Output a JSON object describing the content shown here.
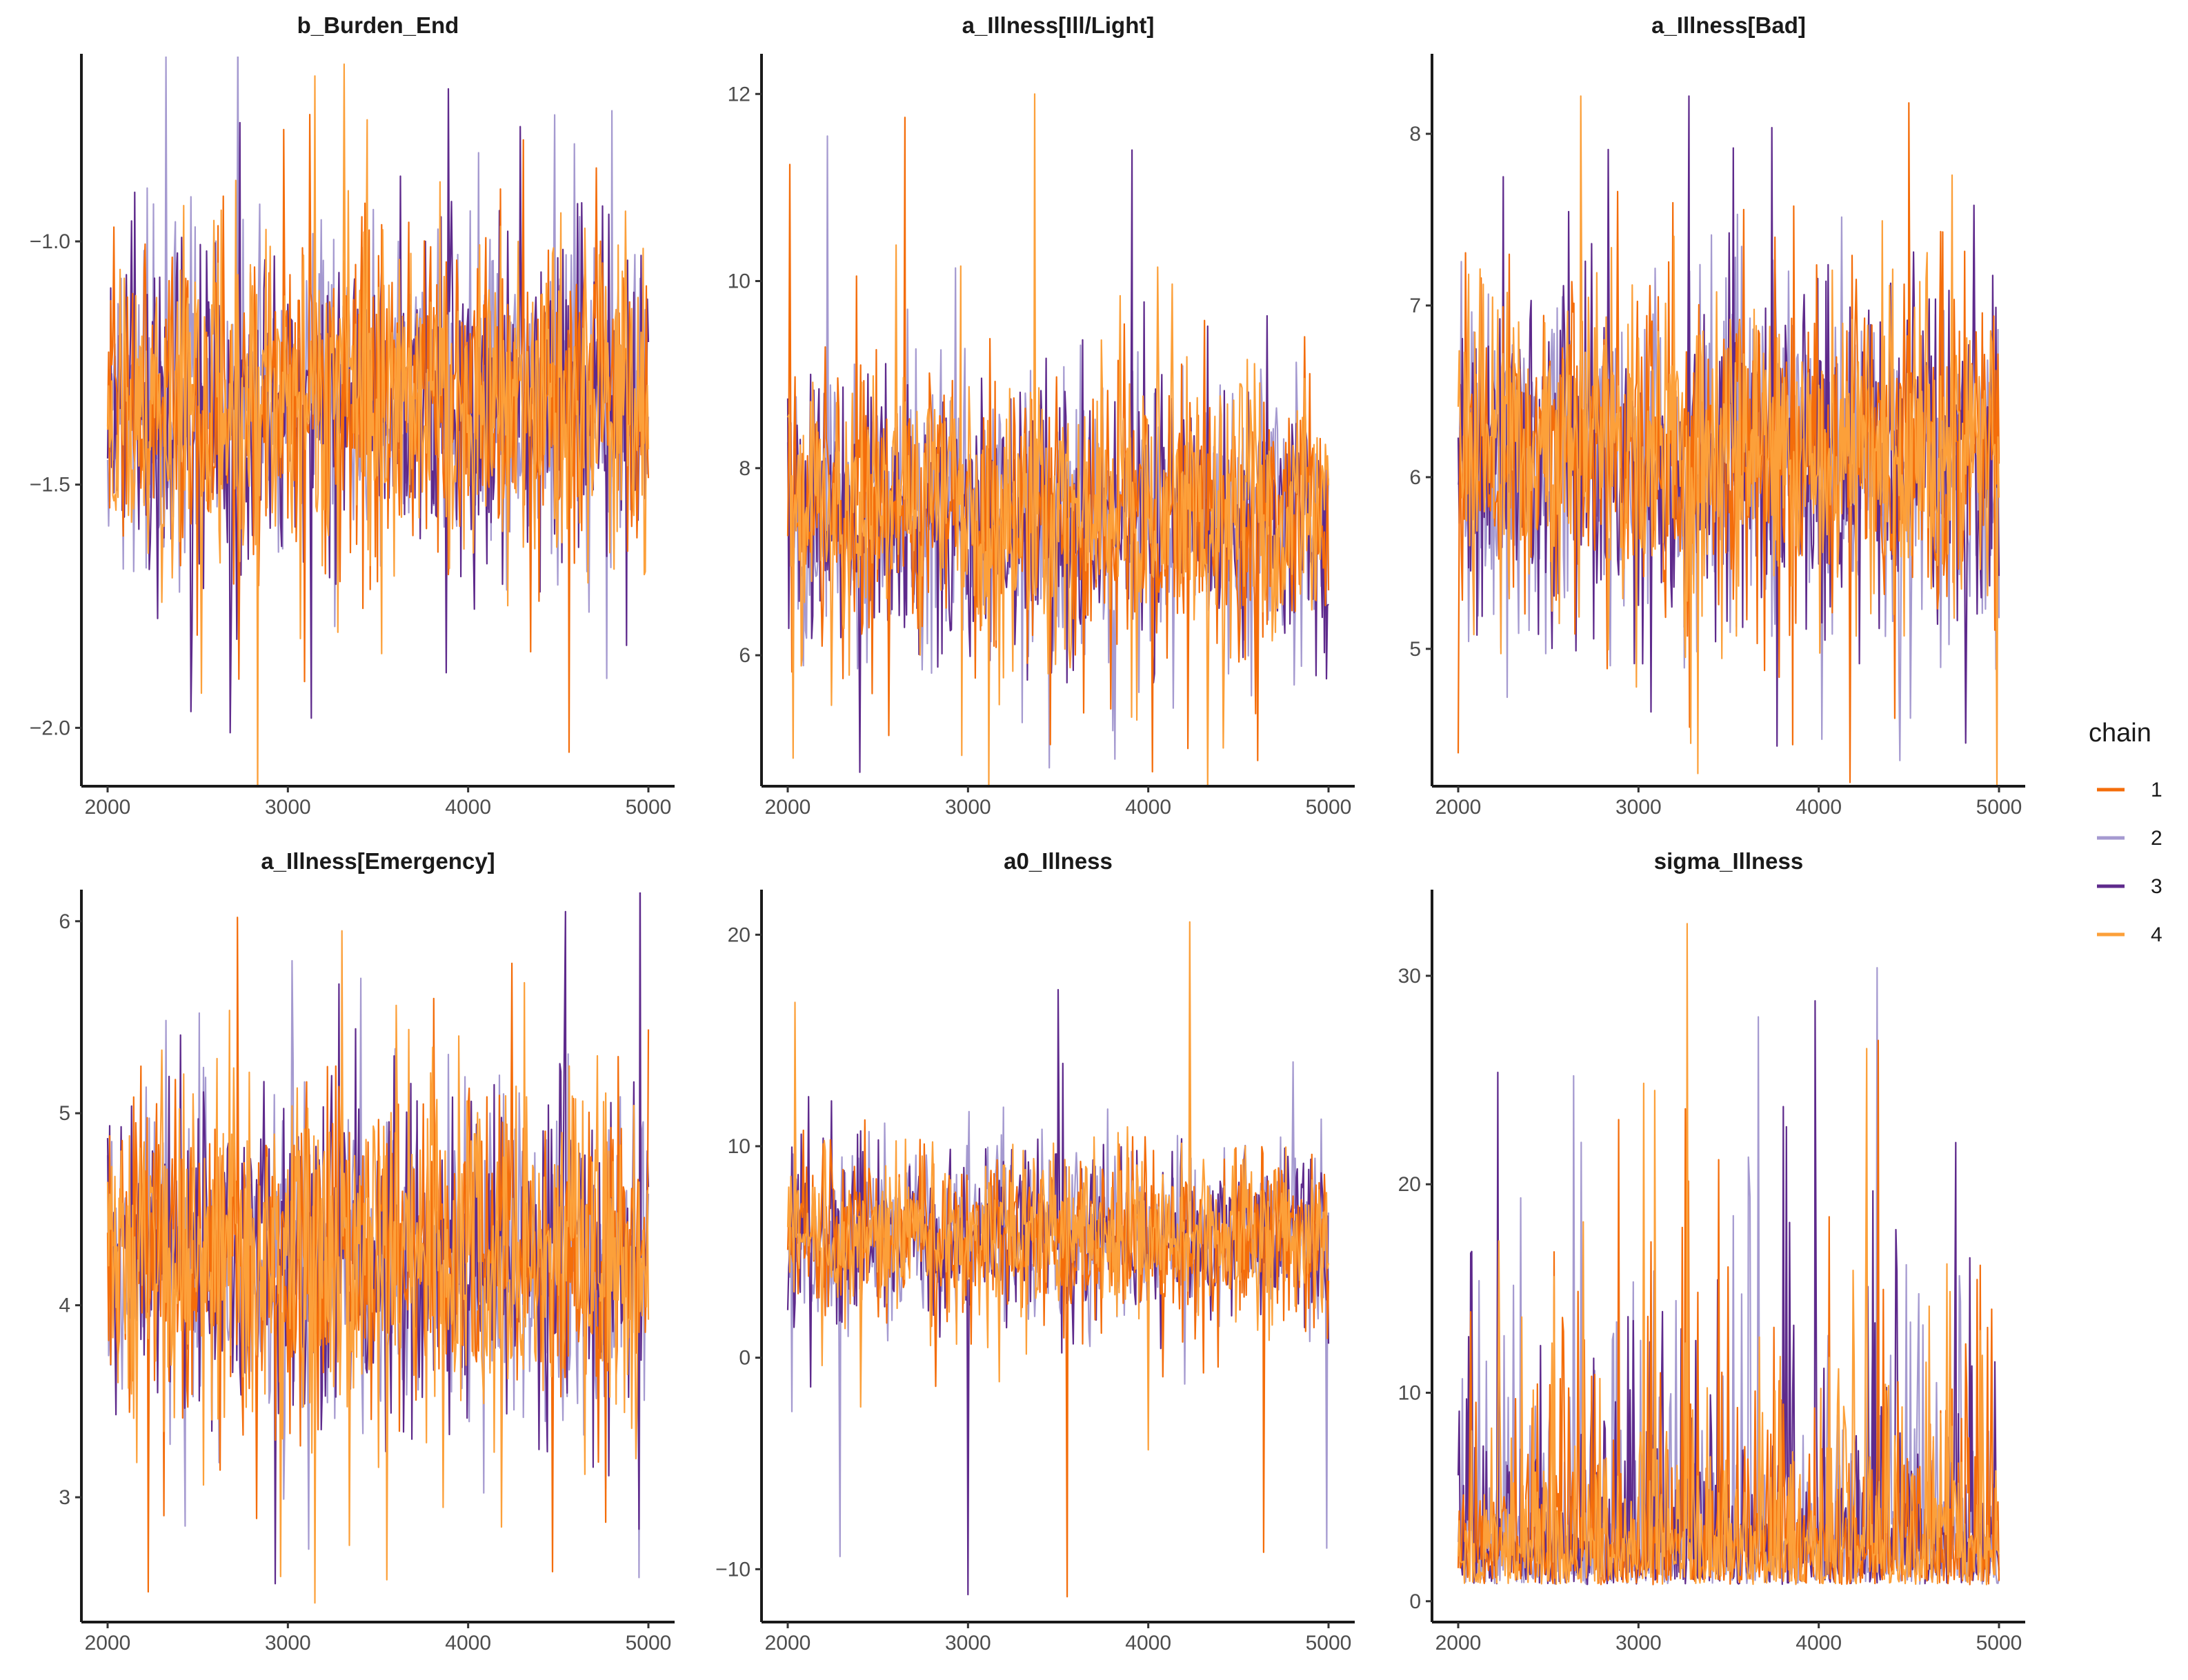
{
  "chart_data": {
    "type": "line",
    "figure": "MCMC trace plots",
    "x_range": [
      2000,
      5000
    ],
    "legend": {
      "title": "chain",
      "placement": "right",
      "entries": [
        {
          "label": "1",
          "color": "#f46d0a"
        },
        {
          "label": "2",
          "color": "#a59ad0"
        },
        {
          "label": "3",
          "color": "#5e2a8c"
        },
        {
          "label": "4",
          "color": "#fca03a"
        }
      ]
    },
    "panels": [
      {
        "title": "b_Burden_End",
        "ylim": [
          -2.12,
          -0.62
        ],
        "yticks": [
          {
            "v": -2.0,
            "label": "−2.0"
          },
          {
            "v": -1.5,
            "label": "−1.5"
          },
          {
            "v": -1.0,
            "label": "−1.0"
          }
        ],
        "xticks": [
          {
            "v": 2000,
            "label": "2000"
          },
          {
            "v": 3000,
            "label": "3000"
          },
          {
            "v": 4000,
            "label": "4000"
          },
          {
            "v": 5000,
            "label": "5000"
          }
        ],
        "trace": {
          "center": -1.33,
          "spread": 0.16,
          "skew": 0,
          "floor": null,
          "seed": 11,
          "spikes": [
            [
              3150,
              -0.66
            ],
            [
              2680,
              -2.01
            ],
            [
              4560,
              -2.05
            ],
            [
              4480,
              -0.74
            ],
            [
              3440,
              -0.75
            ],
            [
              3130,
              -1.98
            ]
          ]
        }
      },
      {
        "title": "a_Illness[Ill/Light]",
        "ylim": [
          4.6,
          12.4
        ],
        "yticks": [
          {
            "v": 6,
            "label": "6"
          },
          {
            "v": 8,
            "label": "8"
          },
          {
            "v": 10,
            "label": "10"
          },
          {
            "v": 12,
            "label": "12"
          }
        ],
        "xticks": [
          {
            "v": 2000,
            "label": "2000"
          },
          {
            "v": 3000,
            "label": "3000"
          },
          {
            "v": 4000,
            "label": "4000"
          },
          {
            "v": 5000,
            "label": "5000"
          }
        ],
        "trace": {
          "center": 7.5,
          "spread": 0.72,
          "skew": 0.15,
          "floor": null,
          "seed": 23,
          "spikes": [
            [
              3370,
              12.0
            ],
            [
              2400,
              4.75
            ],
            [
              2650,
              11.75
            ],
            [
              2220,
              11.55
            ],
            [
              2030,
              4.9
            ],
            [
              3910,
              11.4
            ]
          ]
        }
      },
      {
        "title": "a_Illness[Bad]",
        "ylim": [
          4.2,
          8.45
        ],
        "yticks": [
          {
            "v": 5,
            "label": "5"
          },
          {
            "v": 6,
            "label": "6"
          },
          {
            "v": 7,
            "label": "7"
          },
          {
            "v": 8,
            "label": "8"
          }
        ],
        "xticks": [
          {
            "v": 2000,
            "label": "2000"
          },
          {
            "v": 3000,
            "label": "3000"
          },
          {
            "v": 4000,
            "label": "4000"
          },
          {
            "v": 5000,
            "label": "5000"
          }
        ],
        "trace": {
          "center": 6.15,
          "spread": 0.45,
          "skew": 0,
          "floor": null,
          "seed": 37,
          "spikes": [
            [
              2680,
              8.22
            ],
            [
              3280,
              8.22
            ],
            [
              4500,
              8.18
            ],
            [
              4450,
              4.35
            ],
            [
              3290,
              4.45
            ],
            [
              2250,
              7.75
            ]
          ]
        }
      },
      {
        "title": "a_Illness[Emergency]",
        "ylim": [
          2.35,
          6.15
        ],
        "yticks": [
          {
            "v": 3,
            "label": "3"
          },
          {
            "v": 4,
            "label": "4"
          },
          {
            "v": 5,
            "label": "5"
          },
          {
            "v": 6,
            "label": "6"
          }
        ],
        "xticks": [
          {
            "v": 2000,
            "label": "2000"
          },
          {
            "v": 3000,
            "label": "3000"
          },
          {
            "v": 4000,
            "label": "4000"
          },
          {
            "v": 5000,
            "label": "5000"
          }
        ],
        "trace": {
          "center": 4.25,
          "spread": 0.42,
          "skew": 0,
          "floor": null,
          "seed": 53,
          "spikes": [
            [
              3150,
              2.45
            ],
            [
              4540,
              6.05
            ],
            [
              2720,
              6.02
            ],
            [
              2430,
              2.85
            ],
            [
              3300,
              5.95
            ],
            [
              2930,
              2.55
            ]
          ]
        }
      },
      {
        "title": "a0_Illness",
        "ylim": [
          -12.5,
          22.0
        ],
        "yticks": [
          {
            "v": -10,
            "label": "−10"
          },
          {
            "v": 0,
            "label": "0"
          },
          {
            "v": 10,
            "label": "10"
          },
          {
            "v": 20,
            "label": "20"
          }
        ],
        "xticks": [
          {
            "v": 2000,
            "label": "2000"
          },
          {
            "v": 3000,
            "label": "3000"
          },
          {
            "v": 4000,
            "label": "4000"
          },
          {
            "v": 5000,
            "label": "5000"
          }
        ],
        "trace": {
          "center": 5.8,
          "spread": 1.9,
          "skew": -0.35,
          "floor": null,
          "seed": 71,
          "spikes": [
            [
              4230,
              20.6
            ],
            [
              3000,
              -11.2
            ],
            [
              3550,
              -11.3
            ],
            [
              2290,
              -9.4
            ],
            [
              2040,
              16.8
            ],
            [
              3500,
              17.4
            ],
            [
              4640,
              -9.2
            ],
            [
              4990,
              -9.0
            ]
          ]
        }
      },
      {
        "title": "sigma_Illness",
        "ylim": [
          -1.0,
          34.0
        ],
        "yticks": [
          {
            "v": 0,
            "label": "0"
          },
          {
            "v": 10,
            "label": "10"
          },
          {
            "v": 20,
            "label": "20"
          },
          {
            "v": 30,
            "label": "30"
          }
        ],
        "xticks": [
          {
            "v": 2000,
            "label": "2000"
          },
          {
            "v": 3000,
            "label": "3000"
          },
          {
            "v": 4000,
            "label": "4000"
          },
          {
            "v": 5000,
            "label": "5000"
          }
        ],
        "trace": {
          "center": 2.2,
          "spread": 2.2,
          "skew": 1.6,
          "floor": 0.8,
          "seed": 89,
          "spikes": [
            [
              3270,
              32.5
            ],
            [
              3980,
              28.8
            ],
            [
              4330,
              26.9
            ],
            [
              2640,
              25.2
            ],
            [
              3090,
              24.5
            ],
            [
              4760,
              22.0
            ],
            [
              2890,
              23.1
            ],
            [
              3610,
              21.3
            ]
          ]
        }
      }
    ]
  }
}
